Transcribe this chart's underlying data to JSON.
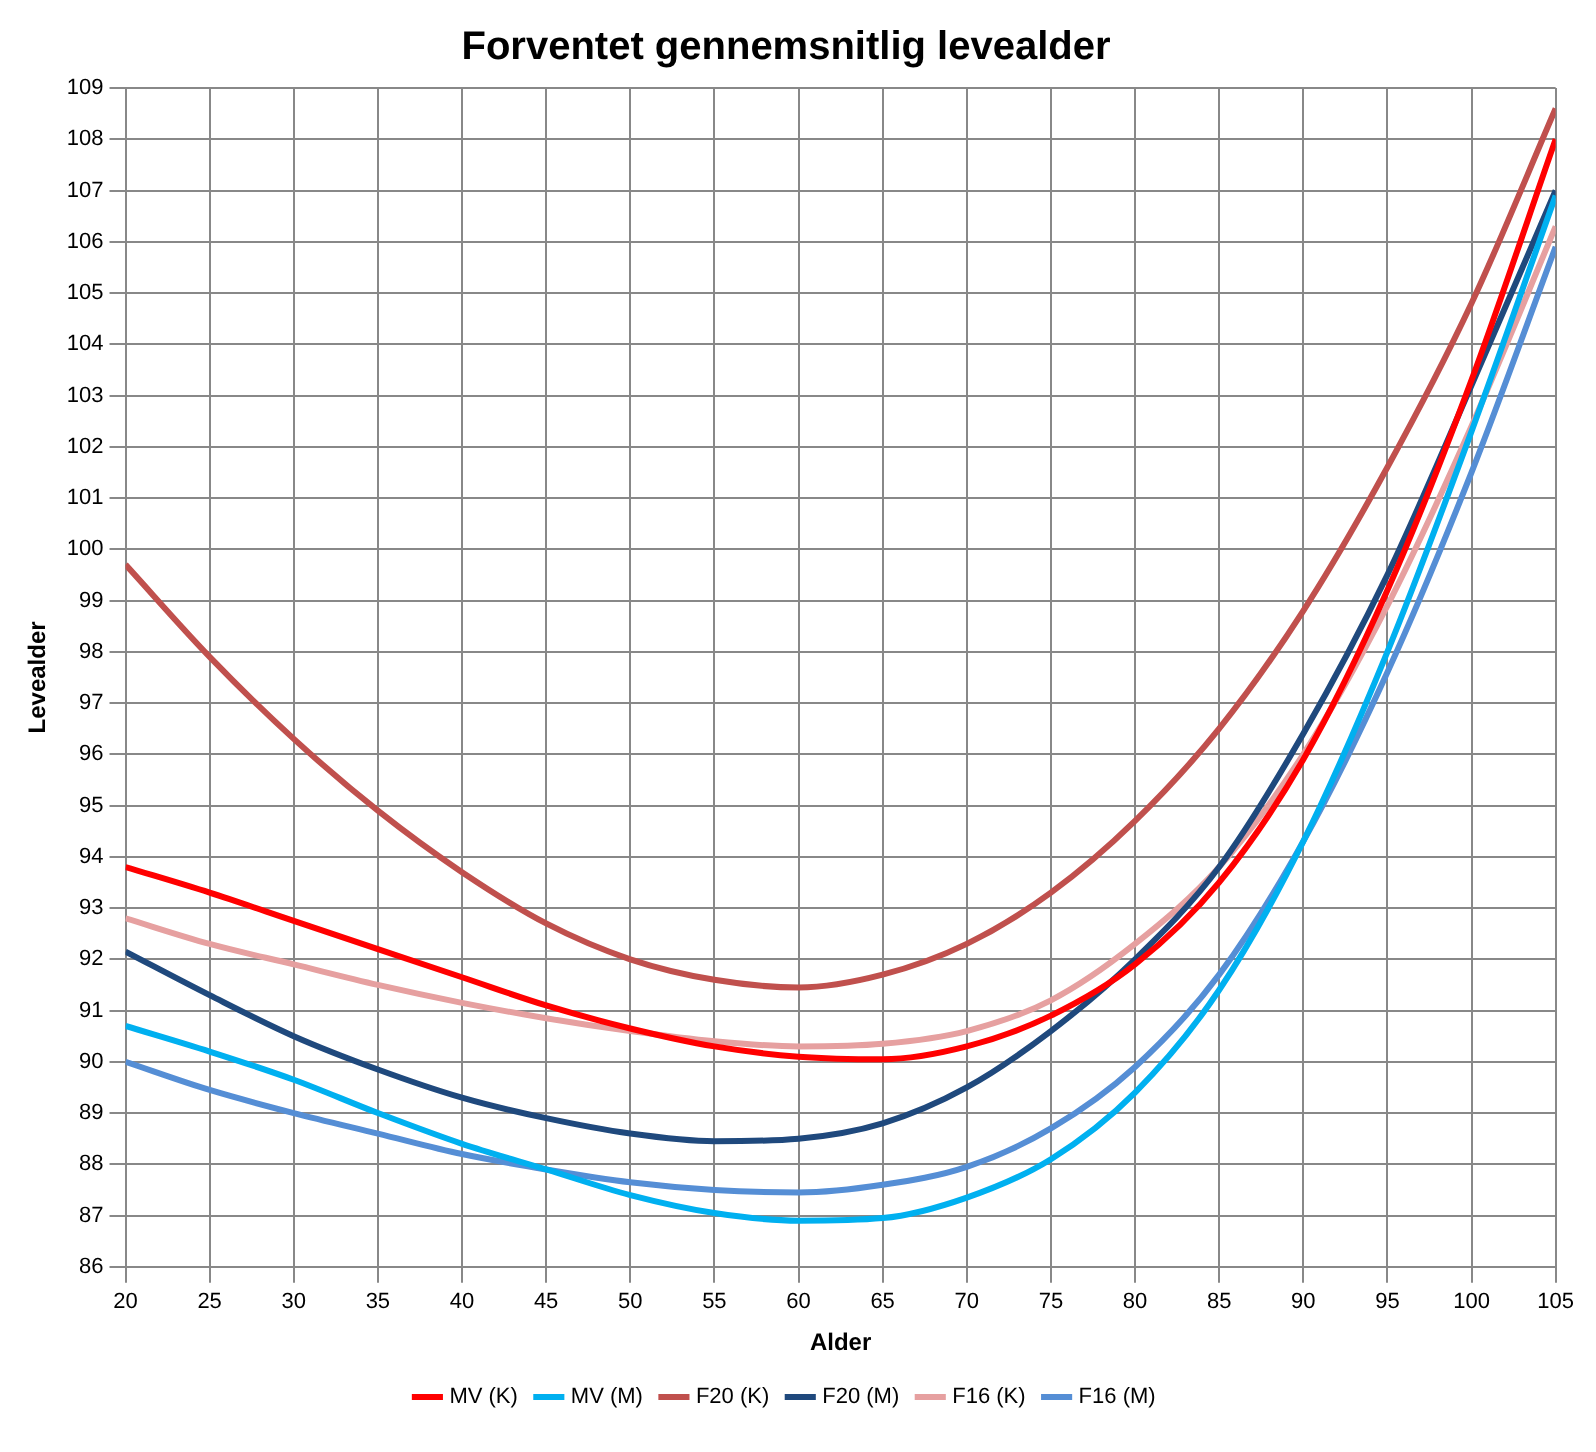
{
  "chart_data": {
    "type": "line",
    "title": "Forventet gennemsnitlig levealder",
    "xlabel": "Alder",
    "ylabel": "Levealder",
    "x": [
      20,
      25,
      30,
      35,
      40,
      45,
      50,
      55,
      60,
      65,
      70,
      75,
      80,
      85,
      90,
      95,
      100,
      105
    ],
    "xlim": [
      20,
      105
    ],
    "xticks": [
      20,
      25,
      30,
      35,
      40,
      45,
      50,
      55,
      60,
      65,
      70,
      75,
      80,
      85,
      90,
      95,
      100,
      105
    ],
    "ylim": [
      86,
      109
    ],
    "yticks": [
      86,
      87,
      88,
      89,
      90,
      91,
      92,
      93,
      94,
      95,
      96,
      97,
      98,
      99,
      100,
      101,
      102,
      103,
      104,
      105,
      106,
      107,
      108,
      109
    ],
    "grid": true,
    "legend": "bottom",
    "marker": "none",
    "line_style": "solid",
    "series": [
      {
        "name": "MV (K)",
        "color": "#ff0000",
        "values": [
          93.8,
          93.3,
          92.75,
          92.2,
          91.65,
          91.1,
          90.65,
          90.3,
          90.1,
          90.05,
          90.3,
          90.9,
          91.9,
          93.5,
          95.9,
          99.2,
          103.3,
          108.0
        ]
      },
      {
        "name": "MV (M)",
        "color": "#00b0f0",
        "values": [
          90.7,
          90.2,
          89.65,
          89.0,
          88.4,
          87.9,
          87.4,
          87.05,
          86.9,
          86.95,
          87.35,
          88.1,
          89.4,
          91.4,
          94.3,
          98.0,
          102.3,
          106.9
        ]
      },
      {
        "name": "F20 (K)",
        "color": "#c0504d",
        "values": [
          99.7,
          97.9,
          96.3,
          94.9,
          93.7,
          92.7,
          92.0,
          91.6,
          91.45,
          91.7,
          92.3,
          93.3,
          94.7,
          96.5,
          98.8,
          101.6,
          104.8,
          108.6
        ]
      },
      {
        "name": "F20 (M)",
        "color": "#1f497d",
        "values": [
          92.15,
          91.3,
          90.5,
          89.85,
          89.3,
          88.9,
          88.6,
          88.45,
          88.5,
          88.8,
          89.5,
          90.6,
          92.0,
          93.8,
          96.4,
          99.5,
          103.2,
          107.0
        ]
      },
      {
        "name": "F16 (K)",
        "color": "#e6a0a0",
        "values": [
          92.8,
          92.3,
          91.9,
          91.5,
          91.15,
          90.85,
          90.6,
          90.4,
          90.3,
          90.35,
          90.6,
          91.2,
          92.3,
          93.8,
          96.0,
          98.9,
          102.4,
          106.3
        ]
      },
      {
        "name": "F16 (M)",
        "color": "#558ed5",
        "values": [
          90.0,
          89.45,
          89.0,
          88.6,
          88.2,
          87.9,
          87.65,
          87.5,
          87.45,
          87.6,
          87.95,
          88.7,
          89.9,
          91.7,
          94.3,
          97.6,
          101.5,
          105.9
        ]
      }
    ]
  }
}
